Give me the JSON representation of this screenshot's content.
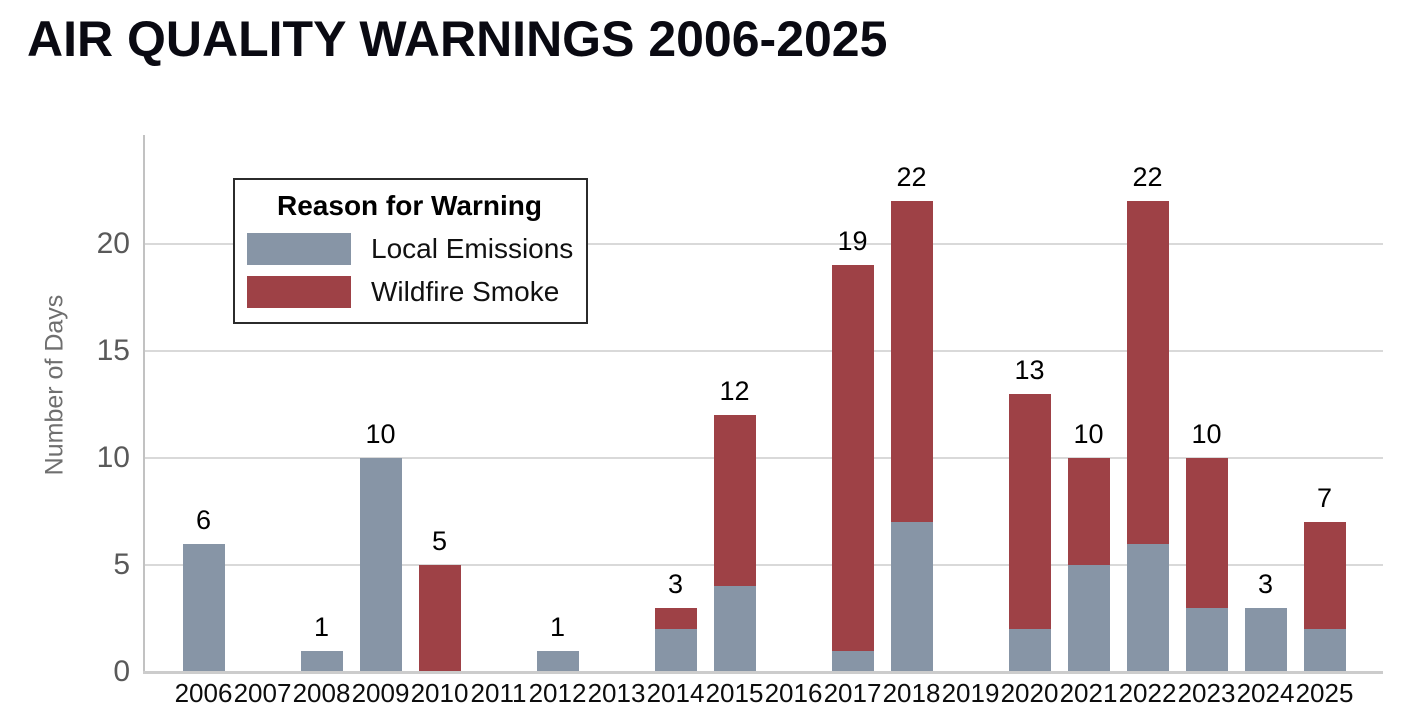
{
  "title": "AIR QUALITY WARNINGS 2006-2025",
  "chart_data": {
    "type": "bar",
    "stacked": true,
    "title": "AIR QUALITY WARNINGS 2006-2025",
    "xlabel": "",
    "ylabel": "Number of Days",
    "ylim": [
      0,
      25
    ],
    "yticks": [
      0,
      5,
      10,
      15,
      20
    ],
    "grid": true,
    "legend_title": "Reason for Warning",
    "legend_position": "upper-left-inside",
    "categories": [
      "2006",
      "2007",
      "2008",
      "2009",
      "2010",
      "2011",
      "2012",
      "2013",
      "2014",
      "2015",
      "2016",
      "2017",
      "2018",
      "2019",
      "2020",
      "2021",
      "2022",
      "2023",
      "2024",
      "2025"
    ],
    "series": [
      {
        "name": "Local Emissions",
        "color": "#8795a6",
        "values": [
          6,
          0,
          1,
          10,
          0,
          0,
          1,
          0,
          2,
          4,
          0,
          1,
          7,
          0,
          2,
          5,
          6,
          3,
          3,
          2
        ]
      },
      {
        "name": "Wildfire Smoke",
        "color": "#9e4146",
        "values": [
          0,
          0,
          0,
          0,
          5,
          0,
          0,
          0,
          1,
          8,
          0,
          18,
          15,
          0,
          11,
          5,
          16,
          7,
          0,
          5
        ]
      }
    ],
    "totals": [
      6,
      0,
      1,
      10,
      5,
      0,
      1,
      0,
      3,
      12,
      0,
      19,
      22,
      0,
      13,
      10,
      22,
      10,
      3,
      7
    ]
  },
  "colors": {
    "local_emissions": "#8795a6",
    "wildfire_smoke": "#9e4146",
    "gridline": "#d9d9d9",
    "axis_line": "#c2c2c2",
    "baseline": "#cccccc",
    "y_tick_text": "#595959",
    "x_tick_text": "#0d0d0d",
    "value_label_text": "#000000",
    "title_text": "#0a0a12"
  }
}
